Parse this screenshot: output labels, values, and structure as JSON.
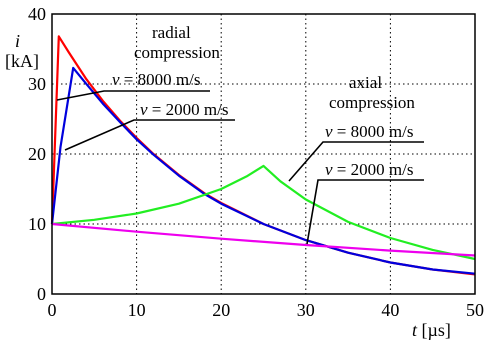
{
  "chart_data": {
    "type": "line",
    "y_axis_symbol": "i",
    "y_axis_unit": "[kA]",
    "x_axis_label": "t [µs]",
    "xlim": [
      0,
      50
    ],
    "ylim": [
      0,
      40
    ],
    "x_ticks": [
      "0",
      "10",
      "20",
      "30",
      "40",
      "50"
    ],
    "y_ticks": [
      "0",
      "10",
      "20",
      "30",
      "40"
    ],
    "grid": true,
    "annotations": {
      "radial_1": "radial",
      "radial_2": "compression",
      "axial_1": "axial",
      "axial_2": "compression",
      "v8000_radial": "v = 8000 m/s",
      "v2000_radial": "v = 2000 m/s",
      "v8000_axial": "v = 8000 m/s",
      "v2000_axial": "v = 2000 m/s"
    },
    "series": [
      {
        "color": "#ff0000",
        "x": [
          0,
          0.8,
          2,
          4,
          6,
          8,
          10,
          12,
          15,
          18,
          20,
          25,
          30,
          35,
          40,
          45,
          50
        ],
        "y": [
          10,
          36.8,
          34.5,
          30.8,
          27.6,
          24.8,
          22.3,
          20.0,
          17.0,
          14.4,
          13.0,
          10.0,
          7.7,
          5.9,
          4.5,
          3.5,
          2.8
        ]
      },
      {
        "color": "#0000dd",
        "x": [
          0,
          1,
          2.5,
          4,
          6,
          8,
          10,
          12,
          15,
          18,
          20,
          25,
          30,
          35,
          40,
          45,
          50
        ],
        "y": [
          10,
          21,
          32.3,
          30.1,
          27.2,
          24.6,
          22.1,
          19.9,
          16.9,
          14.3,
          12.9,
          10.0,
          7.7,
          5.9,
          4.5,
          3.5,
          2.9
        ]
      },
      {
        "color": "#22ee22",
        "x": [
          0,
          5,
          10,
          15,
          20,
          23,
          25,
          27,
          30,
          35,
          40,
          45,
          50
        ],
        "y": [
          10,
          10.6,
          11.5,
          12.9,
          15.0,
          16.8,
          18.3,
          16.1,
          13.5,
          10.3,
          8.0,
          6.3,
          5.0
        ]
      },
      {
        "color": "#ee00ee",
        "x": [
          0,
          10,
          20,
          30,
          40,
          50
        ],
        "y": [
          10,
          8.9,
          7.9,
          7.0,
          6.2,
          5.5
        ]
      }
    ]
  }
}
